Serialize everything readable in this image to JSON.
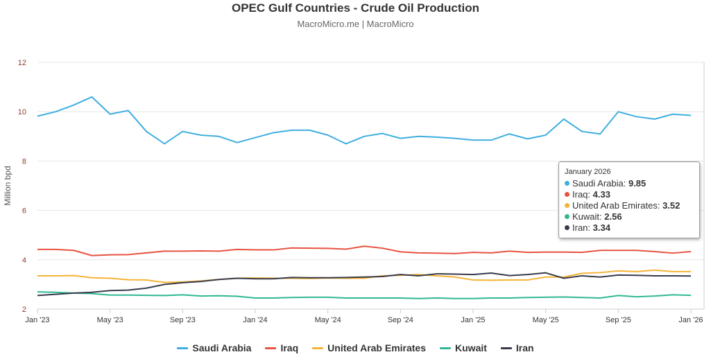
{
  "chart_data": {
    "type": "line",
    "title": "OPEC Gulf Countries - Crude Oil Production",
    "subtitle": "MacroMicro.me | MacroMicro",
    "ylabel": "Million bpd",
    "ylim": [
      2,
      12
    ],
    "yticks": [
      "2",
      "4",
      "6",
      "8",
      "10",
      "12"
    ],
    "grid": true,
    "legend": "bottom",
    "x_start": "2023-01",
    "x_end": "2026-01",
    "xticks": [
      "Jan '23",
      "May '23",
      "Sep '23",
      "Jan '24",
      "May '24",
      "Sep '24",
      "Jan '25",
      "May '25",
      "Sep '25",
      "Jan '26"
    ],
    "series": [
      {
        "name": "Saudi Arabia",
        "color": "#3eaee0",
        "values": [
          9.82,
          10.0,
          10.27,
          10.6,
          9.9,
          10.05,
          9.2,
          8.7,
          9.2,
          9.05,
          9.0,
          8.75,
          8.95,
          9.15,
          9.25,
          9.25,
          9.05,
          8.7,
          9.0,
          9.12,
          8.92,
          9.0,
          8.97,
          8.92,
          8.85,
          8.85,
          9.1,
          8.9,
          9.05,
          9.7,
          9.2,
          9.1,
          10.0,
          9.8,
          9.7,
          9.9,
          9.85
        ]
      },
      {
        "name": "Iraq",
        "color": "#e8523f",
        "values": [
          4.42,
          4.42,
          4.38,
          4.17,
          4.2,
          4.21,
          4.28,
          4.35,
          4.35,
          4.36,
          4.35,
          4.42,
          4.4,
          4.4,
          4.48,
          4.47,
          4.46,
          4.43,
          4.55,
          4.47,
          4.32,
          4.28,
          4.27,
          4.25,
          4.3,
          4.28,
          4.35,
          4.3,
          4.31,
          4.31,
          4.3,
          4.38,
          4.38,
          4.38,
          4.33,
          4.27,
          4.33
        ]
      },
      {
        "name": "United Arab Emirates",
        "color": "#f5b335",
        "values": [
          3.35,
          3.35,
          3.36,
          3.27,
          3.25,
          3.19,
          3.18,
          3.08,
          3.1,
          3.14,
          3.2,
          3.25,
          3.26,
          3.25,
          3.25,
          3.24,
          3.26,
          3.25,
          3.25,
          3.35,
          3.37,
          3.4,
          3.35,
          3.3,
          3.18,
          3.17,
          3.18,
          3.18,
          3.3,
          3.3,
          3.45,
          3.48,
          3.55,
          3.52,
          3.58,
          3.52,
          3.52
        ]
      },
      {
        "name": "Kuwait",
        "color": "#2fb893",
        "values": [
          2.7,
          2.68,
          2.65,
          2.63,
          2.57,
          2.57,
          2.56,
          2.55,
          2.58,
          2.53,
          2.54,
          2.52,
          2.45,
          2.45,
          2.47,
          2.48,
          2.48,
          2.45,
          2.45,
          2.45,
          2.45,
          2.43,
          2.45,
          2.43,
          2.43,
          2.45,
          2.45,
          2.47,
          2.48,
          2.49,
          2.47,
          2.45,
          2.55,
          2.5,
          2.53,
          2.58,
          2.56
        ]
      },
      {
        "name": "Iran",
        "color": "#383a4a",
        "values": [
          2.55,
          2.6,
          2.65,
          2.68,
          2.75,
          2.77,
          2.85,
          3.0,
          3.07,
          3.12,
          3.2,
          3.25,
          3.23,
          3.23,
          3.28,
          3.27,
          3.27,
          3.28,
          3.3,
          3.32,
          3.4,
          3.35,
          3.43,
          3.42,
          3.4,
          3.46,
          3.36,
          3.4,
          3.47,
          3.25,
          3.35,
          3.3,
          3.38,
          3.37,
          3.35,
          3.35,
          3.34
        ]
      }
    ],
    "tooltip": {
      "header": "January 2026",
      "rows": [
        {
          "label": "Saudi Arabia:",
          "value": "9.85"
        },
        {
          "label": "Iraq:",
          "value": "4.33"
        },
        {
          "label": "United Arab Emirates:",
          "value": "3.52"
        },
        {
          "label": "Kuwait:",
          "value": "2.56"
        },
        {
          "label": "Iran:",
          "value": "3.34"
        }
      ]
    }
  }
}
